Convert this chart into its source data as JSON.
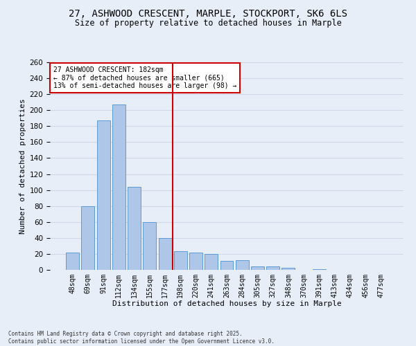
{
  "title_line1": "27, ASHWOOD CRESCENT, MARPLE, STOCKPORT, SK6 6LS",
  "title_line2": "Size of property relative to detached houses in Marple",
  "xlabel": "Distribution of detached houses by size in Marple",
  "ylabel": "Number of detached properties",
  "bar_labels": [
    "48sqm",
    "69sqm",
    "91sqm",
    "112sqm",
    "134sqm",
    "155sqm",
    "177sqm",
    "198sqm",
    "220sqm",
    "241sqm",
    "263sqm",
    "284sqm",
    "305sqm",
    "327sqm",
    "348sqm",
    "370sqm",
    "391sqm",
    "413sqm",
    "434sqm",
    "456sqm",
    "477sqm"
  ],
  "bar_values": [
    22,
    80,
    187,
    207,
    104,
    60,
    40,
    23,
    22,
    20,
    11,
    12,
    4,
    4,
    3,
    0,
    1,
    0,
    0,
    0,
    0
  ],
  "bar_color": "#aec6e8",
  "bar_edge_color": "#5b9bd5",
  "vline_x": 6.5,
  "vline_color": "#cc0000",
  "annotation_title": "27 ASHWOOD CRESCENT: 182sqm",
  "annotation_line2": "← 87% of detached houses are smaller (665)",
  "annotation_line3": "13% of semi-detached houses are larger (98) →",
  "annotation_box_color": "#ffffff",
  "annotation_box_edge": "#cc0000",
  "ylim": [
    0,
    260
  ],
  "yticks": [
    0,
    20,
    40,
    60,
    80,
    100,
    120,
    140,
    160,
    180,
    200,
    220,
    240,
    260
  ],
  "grid_color": "#d0d8e8",
  "bg_color": "#e8eef8",
  "footnote1": "Contains HM Land Registry data © Crown copyright and database right 2025.",
  "footnote2": "Contains public sector information licensed under the Open Government Licence v3.0."
}
